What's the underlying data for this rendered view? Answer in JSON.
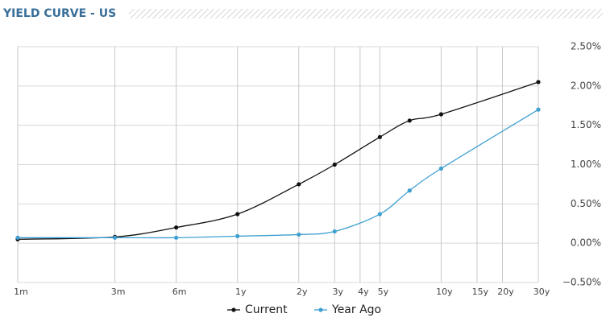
{
  "chart_data": {
    "type": "line",
    "title": "YIELD CURVE - US",
    "x": [
      1,
      3,
      6,
      12,
      24,
      36,
      60,
      84,
      120,
      360
    ],
    "xscale": "log",
    "xlim": [
      1,
      360
    ],
    "xticks": [
      {
        "value": 1,
        "label": "1m"
      },
      {
        "value": 3,
        "label": "3m"
      },
      {
        "value": 6,
        "label": "6m"
      },
      {
        "value": 12,
        "label": "1y"
      },
      {
        "value": 24,
        "label": "2y"
      },
      {
        "value": 36,
        "label": "3y"
      },
      {
        "value": 48,
        "label": "4y"
      },
      {
        "value": 60,
        "label": "5y"
      },
      {
        "value": 120,
        "label": "10y"
      },
      {
        "value": 180,
        "label": "15y"
      },
      {
        "value": 240,
        "label": "20y"
      },
      {
        "value": 360,
        "label": "30y"
      }
    ],
    "ylim": [
      -0.5,
      2.5
    ],
    "yticks": [
      {
        "value": -0.5,
        "label": "−0.50%"
      },
      {
        "value": 0,
        "label": "0.00%"
      },
      {
        "value": 0.5,
        "label": "0.50%"
      },
      {
        "value": 1,
        "label": "1.00%"
      },
      {
        "value": 1.5,
        "label": "1.50%"
      },
      {
        "value": 2,
        "label": "2.00%"
      },
      {
        "value": 2.5,
        "label": "2.50%"
      }
    ],
    "grid": true,
    "legend": "bottom",
    "series": [
      {
        "name": "Current",
        "color": "#111111",
        "values": [
          0.05,
          0.08,
          0.2,
          0.37,
          0.75,
          1.0,
          1.35,
          1.56,
          1.64,
          2.05
        ]
      },
      {
        "name": "Year Ago",
        "color": "#3fa0d0",
        "values": [
          0.07,
          0.07,
          0.07,
          0.09,
          0.11,
          0.15,
          0.37,
          0.67,
          0.95,
          1.7
        ]
      }
    ]
  }
}
